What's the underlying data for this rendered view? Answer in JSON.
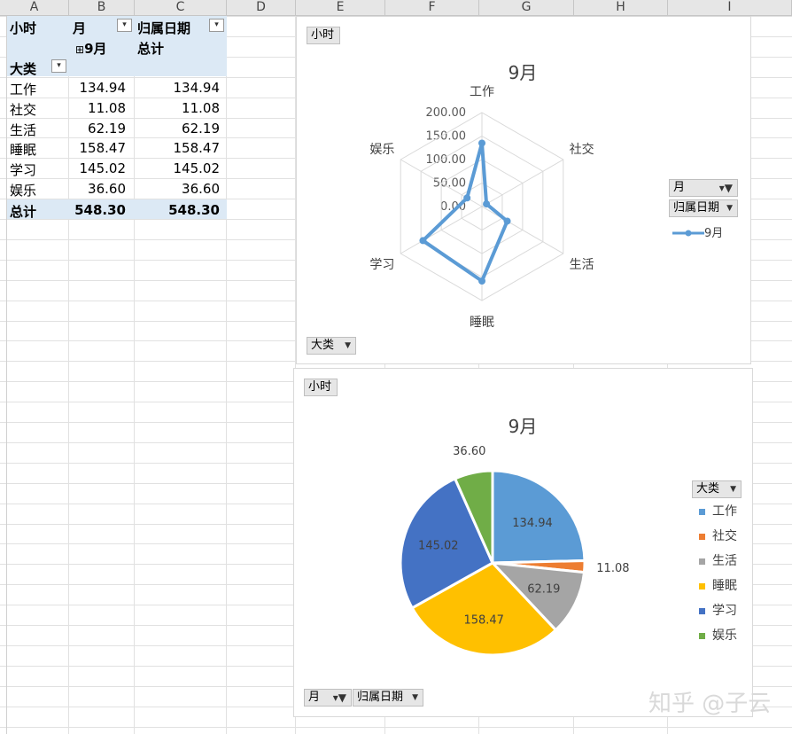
{
  "columns": [
    "A",
    "B",
    "C",
    "D",
    "E",
    "F",
    "G",
    "H",
    "I"
  ],
  "pivot": {
    "value_field": "小时",
    "col_field": "月",
    "col_field2": "归属日期",
    "col_item": "9月",
    "col_total": "总计",
    "row_field": "大类",
    "rows": [
      {
        "label": "工作",
        "v1": "134.94",
        "v2": "134.94"
      },
      {
        "label": "社交",
        "v1": "11.08",
        "v2": "11.08"
      },
      {
        "label": "生活",
        "v1": "62.19",
        "v2": "62.19"
      },
      {
        "label": "睡眠",
        "v1": "158.47",
        "v2": "158.47"
      },
      {
        "label": "学习",
        "v1": "145.02",
        "v2": "145.02"
      },
      {
        "label": "娱乐",
        "v1": "36.60",
        "v2": "36.60"
      }
    ],
    "total": {
      "label": "总计",
      "v1": "548.30",
      "v2": "548.30"
    }
  },
  "radar_chart": {
    "field_button": "小时",
    "bottom_button": "大类",
    "legend_buttons": [
      "月",
      "归属日期"
    ],
    "legend_entry": "9月",
    "color": "#5b9bd5"
  },
  "pie_chart": {
    "field_button": "小时",
    "legend_button": "大类",
    "bottom_buttons": [
      "月",
      "归属日期"
    ]
  },
  "chart_data": [
    {
      "type": "radar",
      "title": "9月",
      "categories": [
        "工作",
        "社交",
        "生活",
        "睡眠",
        "学习",
        "娱乐"
      ],
      "series": [
        {
          "name": "9月",
          "values": [
            134.94,
            11.08,
            62.19,
            158.47,
            145.02,
            36.6
          ]
        }
      ],
      "axis_ticks": [
        "0.00",
        "50.00",
        "100.00",
        "150.00",
        "200.00"
      ],
      "range": [
        0,
        200
      ],
      "legend": "right"
    },
    {
      "type": "pie",
      "title": "9月",
      "categories": [
        "工作",
        "社交",
        "生活",
        "睡眠",
        "学习",
        "娱乐"
      ],
      "values": [
        134.94,
        11.08,
        62.19,
        158.47,
        145.02,
        36.6
      ],
      "labels": [
        "134.94",
        "11.08",
        "62.19",
        "158.47",
        "145.02",
        "36.60"
      ],
      "colors": [
        "#5b9bd5",
        "#ed7d31",
        "#a5a5a5",
        "#ffc000",
        "#4472c4",
        "#70ad47"
      ],
      "legend": "right"
    }
  ],
  "watermark": "知乎 @子云"
}
